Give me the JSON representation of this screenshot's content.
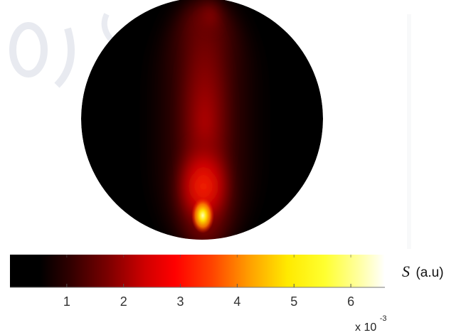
{
  "header_fragment": "ما",
  "chart_data": {
    "type": "heatmap",
    "title": "",
    "colormap": "hot",
    "colorbar": {
      "label_var": "S",
      "label_unit": "(a.u)",
      "ticks": [
        1,
        2,
        3,
        4,
        5,
        6
      ],
      "tick_labels": [
        "1",
        "2",
        "3",
        "4",
        "5",
        "6"
      ],
      "range": [
        0,
        6.6
      ],
      "multiplier": "x 10",
      "multiplier_exponent": "-3"
    },
    "field": {
      "shape": "circle",
      "description": "",
      "peak_value": 6.6,
      "peak_location": "bottom-center"
    }
  }
}
